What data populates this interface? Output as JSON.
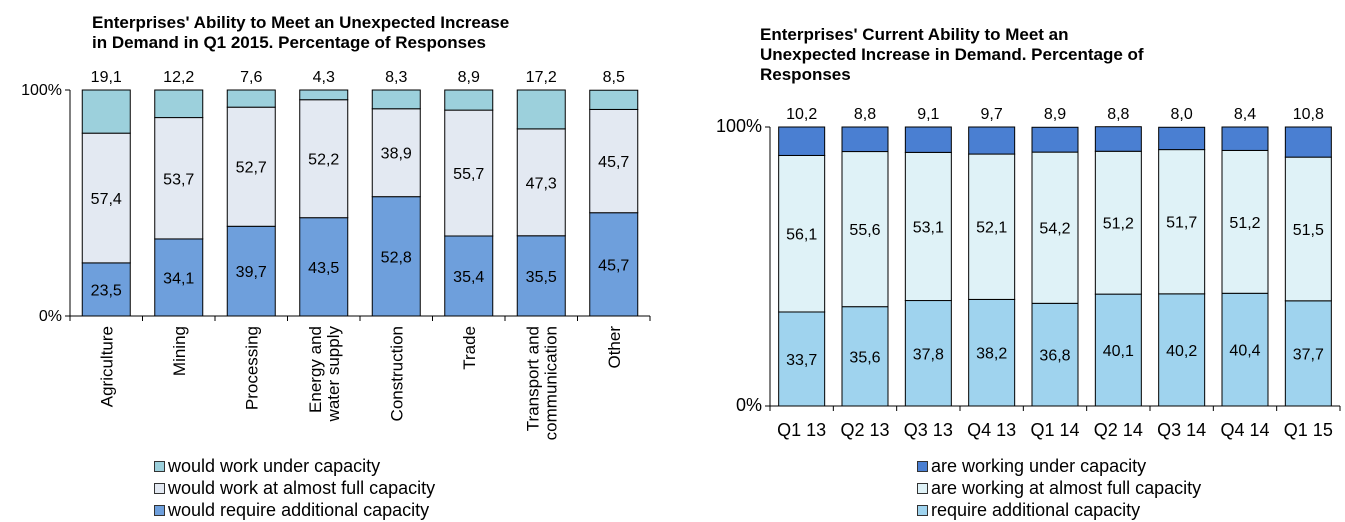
{
  "chart_data": [
    {
      "type": "bar",
      "stacked": true,
      "title": "Enterprises' Ability to Meet an Unexpected Increase\nin Demand in Q1 2015. Percentage of Responses",
      "categories": [
        "Agriculture",
        "Mining",
        "Processing",
        "Energy and\nwater supply",
        "Construction",
        "Trade",
        "Transport and\ncommunication",
        "Other"
      ],
      "series": [
        {
          "name": "would require additional capacity",
          "color": "#6e9fdc",
          "values": [
            23.5,
            34.1,
            39.7,
            43.5,
            52.8,
            35.4,
            35.5,
            45.7
          ],
          "labels": [
            "23,5",
            "34,1",
            "39,7",
            "43,5",
            "52,8",
            "35,4",
            "35,5",
            "45,7"
          ]
        },
        {
          "name": "would work at almost full capacity",
          "color": "#e3e9f2",
          "values": [
            57.4,
            53.7,
            52.7,
            52.2,
            38.9,
            55.7,
            47.3,
            45.7
          ],
          "labels": [
            "57,4",
            "53,7",
            "52,7",
            "52,2",
            "38,9",
            "55,7",
            "47,3",
            "45,7"
          ]
        },
        {
          "name": "would work under capacity",
          "color": "#9cd0dc",
          "values": [
            19.1,
            12.2,
            7.6,
            4.3,
            8.3,
            8.9,
            17.2,
            8.5
          ],
          "labels": [
            "19,1",
            "12,2",
            "7,6",
            "4,3",
            "8,3",
            "8,9",
            "17,2",
            "8,5"
          ]
        }
      ],
      "yticks": [
        "0%",
        "100%"
      ],
      "ylim": [
        0,
        100
      ],
      "legend_position": "bottom"
    },
    {
      "type": "bar",
      "stacked": true,
      "title": "Enterprises' Current Ability to Meet an\nUnexpected Increase in Demand. Percentage of\nResponses",
      "categories": [
        "Q1 13",
        "Q2 13",
        "Q3 13",
        "Q4 13",
        "Q1 14",
        "Q2 14",
        "Q3 14",
        "Q4 14",
        "Q1 15"
      ],
      "series": [
        {
          "name": "require additional capacity",
          "color": "#9fd3ee",
          "values": [
            33.7,
            35.6,
            37.8,
            38.2,
            36.8,
            40.1,
            40.2,
            40.4,
            37.7
          ],
          "labels": [
            "33,7",
            "35,6",
            "37,8",
            "38,2",
            "36,8",
            "40,1",
            "40,2",
            "40,4",
            "37,7"
          ]
        },
        {
          "name": "are working at almost full capacity",
          "color": "#dff2f7",
          "values": [
            56.1,
            55.6,
            53.1,
            52.1,
            54.2,
            51.2,
            51.7,
            51.2,
            51.5
          ],
          "labels": [
            "56,1",
            "55,6",
            "53,1",
            "52,1",
            "54,2",
            "51,2",
            "51,7",
            "51,2",
            "51,5"
          ]
        },
        {
          "name": "are working under capacity",
          "color": "#4a7fd2",
          "values": [
            10.2,
            8.8,
            9.1,
            9.7,
            8.9,
            8.8,
            8.0,
            8.4,
            10.8
          ],
          "labels": [
            "10,2",
            "8,8",
            "9,1",
            "9,7",
            "8,9",
            "8,8",
            "8,0",
            "8,4",
            "10,8"
          ]
        }
      ],
      "yticks": [
        "0%",
        "100%"
      ],
      "ylim": [
        0,
        100
      ],
      "legend_position": "bottom"
    }
  ]
}
